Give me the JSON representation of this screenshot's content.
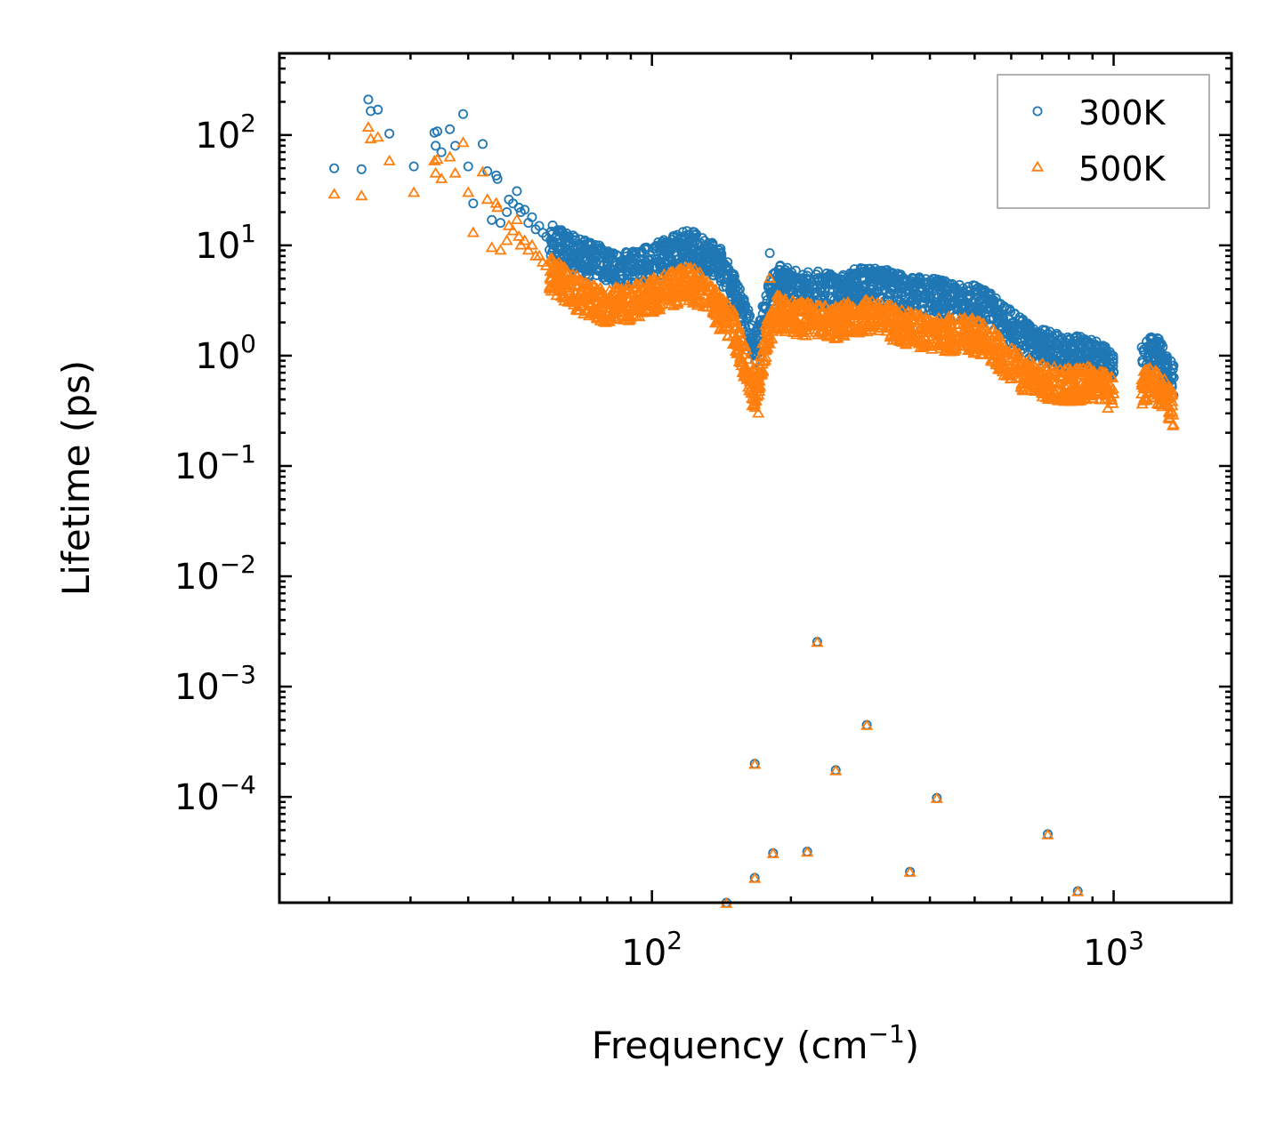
{
  "chart_data": {
    "type": "scatter",
    "title": "",
    "xlabel": "Frequency (cm",
    "xlabel_sup": "−1",
    "xlabel_end": ")",
    "ylabel": "Lifetime (ps)",
    "xscale": "log",
    "yscale": "log",
    "xlim": [
      15.6,
      1800
    ],
    "ylim": [
      1.1e-05,
      550
    ],
    "legend_position": "top-right",
    "x_ticks": [
      {
        "value": 100,
        "base": "10",
        "exp": "2"
      },
      {
        "value": 1000,
        "base": "10",
        "exp": "3"
      }
    ],
    "y_ticks": [
      {
        "value": 100,
        "base": "10",
        "exp": "2"
      },
      {
        "value": 10,
        "base": "10",
        "exp": "1"
      },
      {
        "value": 1,
        "base": "10",
        "exp": "0"
      },
      {
        "value": 0.1,
        "base": "10",
        "exp": "−1"
      },
      {
        "value": 0.01,
        "base": "10",
        "exp": "−2"
      },
      {
        "value": 0.001,
        "base": "10",
        "exp": "−3"
      },
      {
        "value": 0.0001,
        "base": "10",
        "exp": "−4"
      }
    ],
    "series": [
      {
        "name": "300K",
        "color": "#1f77b4",
        "marker": "circle",
        "trend": [
          [
            60,
            11
          ],
          [
            70,
            8
          ],
          [
            80,
            6.5
          ],
          [
            90,
            6
          ],
          [
            100,
            7
          ],
          [
            110,
            8.5
          ],
          [
            120,
            10
          ],
          [
            130,
            8
          ],
          [
            140,
            7
          ],
          [
            150,
            4
          ],
          [
            160,
            2
          ],
          [
            168,
            1.2
          ],
          [
            175,
            2.5
          ],
          [
            185,
            5
          ],
          [
            200,
            4.2
          ],
          [
            250,
            4
          ],
          [
            300,
            4.5
          ],
          [
            350,
            3.8
          ],
          [
            400,
            3.5
          ],
          [
            500,
            3
          ],
          [
            550,
            2.5
          ],
          [
            580,
            2
          ],
          [
            650,
            1.4
          ],
          [
            750,
            1.1
          ],
          [
            900,
            1
          ],
          [
            1000,
            0.75
          ]
        ],
        "trend2": [
          [
            1150,
            0.9
          ],
          [
            1200,
            1.1
          ],
          [
            1250,
            1.0
          ],
          [
            1300,
            0.75
          ],
          [
            1350,
            0.6
          ]
        ],
        "points": [
          [
            20.5,
            50
          ],
          [
            23.5,
            49
          ],
          [
            24.3,
            210
          ],
          [
            24.6,
            165
          ],
          [
            25.5,
            170
          ],
          [
            27,
            103
          ],
          [
            30.5,
            52
          ],
          [
            33.8,
            105
          ],
          [
            34,
            80
          ],
          [
            34.3,
            108
          ],
          [
            35,
            70
          ],
          [
            36.5,
            113
          ],
          [
            37.5,
            80
          ],
          [
            39,
            155
          ],
          [
            40,
            52
          ],
          [
            41,
            24
          ],
          [
            43,
            83
          ],
          [
            44,
            47
          ],
          [
            45,
            17
          ],
          [
            46,
            43
          ],
          [
            46.3,
            40
          ],
          [
            47,
            16
          ],
          [
            48.5,
            20
          ],
          [
            49,
            26
          ],
          [
            50,
            24
          ],
          [
            51,
            31
          ],
          [
            51.5,
            22
          ],
          [
            52,
            20
          ],
          [
            53,
            21
          ],
          [
            54,
            16
          ],
          [
            55,
            18
          ],
          [
            56,
            14
          ],
          [
            57,
            15
          ],
          [
            58,
            13
          ],
          [
            59,
            12
          ],
          [
            62,
            12
          ],
          [
            65,
            10
          ],
          [
            68,
            9
          ],
          [
            72,
            8.5
          ],
          [
            76,
            8
          ],
          [
            80,
            7
          ],
          [
            85,
            6.5
          ],
          [
            90,
            6.5
          ],
          [
            95,
            6
          ],
          [
            100,
            7.5
          ],
          [
            105,
            7.8
          ],
          [
            110,
            9
          ],
          [
            115,
            10.5
          ],
          [
            118,
            12
          ],
          [
            122,
            10.5
          ],
          [
            126,
            9
          ],
          [
            130,
            11
          ],
          [
            135,
            8
          ],
          [
            140,
            7.5
          ],
          [
            145,
            6.5
          ],
          [
            150,
            5.5
          ],
          [
            155,
            4
          ],
          [
            160,
            2.2
          ],
          [
            165,
            1.3
          ],
          [
            170,
            1.1
          ],
          [
            176,
            2.8
          ],
          [
            180,
            8.5
          ],
          [
            183,
            5.5
          ],
          [
            188,
            6
          ],
          [
            195,
            4.5
          ],
          [
            205,
            4.5
          ],
          [
            215,
            4
          ],
          [
            230,
            4.8
          ],
          [
            250,
            4.5
          ],
          [
            270,
            4.7
          ],
          [
            290,
            4.4
          ],
          [
            310,
            5.3
          ],
          [
            330,
            5.1
          ],
          [
            360,
            4
          ],
          [
            380,
            3.8
          ],
          [
            400,
            3.7
          ],
          [
            430,
            3.6
          ],
          [
            470,
            3.5
          ],
          [
            520,
            3.3
          ],
          [
            560,
            3
          ],
          [
            580,
            2.7
          ],
          [
            600,
            1.8
          ],
          [
            640,
            1.6
          ],
          [
            700,
            1.3
          ],
          [
            760,
            1.15
          ],
          [
            820,
            1.05
          ],
          [
            880,
            1.05
          ],
          [
            940,
            1.1
          ],
          [
            960,
            1.2
          ],
          [
            1000,
            0.7
          ],
          [
            1180,
            1.2
          ],
          [
            1200,
            1.45
          ],
          [
            1220,
            1.3
          ],
          [
            1260,
            1.0
          ],
          [
            1300,
            0.9
          ],
          [
            1340,
            0.65
          ]
        ]
      },
      {
        "name": "500K",
        "color": "#ff7f0e",
        "marker": "triangle",
        "trend": [
          [
            60,
            5.5
          ],
          [
            70,
            3.5
          ],
          [
            80,
            2.8
          ],
          [
            90,
            3
          ],
          [
            100,
            3.5
          ],
          [
            110,
            4
          ],
          [
            120,
            4.5
          ],
          [
            130,
            3.8
          ],
          [
            140,
            2.5
          ],
          [
            150,
            1.8
          ],
          [
            160,
            0.8
          ],
          [
            168,
            0.45
          ],
          [
            175,
            1.2
          ],
          [
            185,
            2.5
          ],
          [
            200,
            2.2
          ],
          [
            250,
            2
          ],
          [
            300,
            2.3
          ],
          [
            350,
            1.8
          ],
          [
            400,
            1.6
          ],
          [
            500,
            1.5
          ],
          [
            550,
            1.2
          ],
          [
            580,
            0.9
          ],
          [
            650,
            0.65
          ],
          [
            750,
            0.55
          ],
          [
            900,
            0.55
          ],
          [
            1000,
            0.45
          ]
        ],
        "trend2": [
          [
            1150,
            0.5
          ],
          [
            1200,
            0.55
          ],
          [
            1250,
            0.5
          ],
          [
            1300,
            0.4
          ],
          [
            1350,
            0.32
          ]
        ],
        "points": [
          [
            20.5,
            29
          ],
          [
            23.5,
            28
          ],
          [
            24.3,
            117
          ],
          [
            24.6,
            92
          ],
          [
            25.5,
            95
          ],
          [
            27,
            58
          ],
          [
            30.5,
            30
          ],
          [
            33.8,
            58
          ],
          [
            34,
            45
          ],
          [
            34.3,
            60
          ],
          [
            35,
            40
          ],
          [
            36.5,
            63
          ],
          [
            37.5,
            45
          ],
          [
            39,
            85
          ],
          [
            40,
            30
          ],
          [
            41,
            13
          ],
          [
            43,
            46
          ],
          [
            44,
            26
          ],
          [
            45,
            9.5
          ],
          [
            46,
            24
          ],
          [
            46.3,
            22
          ],
          [
            47,
            9
          ],
          [
            48.5,
            11
          ],
          [
            49,
            15
          ],
          [
            50,
            13.5
          ],
          [
            51,
            17
          ],
          [
            51.5,
            12
          ],
          [
            52,
            10
          ],
          [
            53,
            11
          ],
          [
            54,
            9
          ],
          [
            55,
            10
          ],
          [
            56,
            8
          ],
          [
            57,
            8
          ],
          [
            58,
            7
          ],
          [
            59,
            6.5
          ],
          [
            62,
            6
          ],
          [
            65,
            4.5
          ],
          [
            68,
            3.2
          ],
          [
            72,
            2.5
          ],
          [
            76,
            2.2
          ],
          [
            80,
            2.3
          ],
          [
            85,
            2.5
          ],
          [
            90,
            2.8
          ],
          [
            95,
            3
          ],
          [
            100,
            3.5
          ],
          [
            105,
            3.6
          ],
          [
            110,
            4
          ],
          [
            115,
            4.3
          ],
          [
            118,
            5
          ],
          [
            122,
            4.5
          ],
          [
            126,
            3.5
          ],
          [
            130,
            4.5
          ],
          [
            135,
            3
          ],
          [
            140,
            2.8
          ],
          [
            145,
            2.3
          ],
          [
            150,
            2
          ],
          [
            155,
            1.2
          ],
          [
            160,
            0.7
          ],
          [
            165,
            0.35
          ],
          [
            170,
            0.3
          ],
          [
            176,
            0.9
          ],
          [
            180,
            5
          ],
          [
            183,
            2.5
          ],
          [
            188,
            2.8
          ],
          [
            195,
            2
          ],
          [
            205,
            2
          ],
          [
            215,
            1.8
          ],
          [
            230,
            2.3
          ],
          [
            250,
            2.2
          ],
          [
            270,
            2.4
          ],
          [
            290,
            2
          ],
          [
            310,
            2.6
          ],
          [
            330,
            2.5
          ],
          [
            360,
            1.9
          ],
          [
            380,
            1.7
          ],
          [
            400,
            1.7
          ],
          [
            430,
            1.6
          ],
          [
            470,
            1.6
          ],
          [
            520,
            1.5
          ],
          [
            560,
            1.4
          ],
          [
            580,
            1.2
          ],
          [
            600,
            0.8
          ],
          [
            640,
            0.7
          ],
          [
            700,
            0.6
          ],
          [
            760,
            0.55
          ],
          [
            820,
            0.5
          ],
          [
            880,
            0.55
          ],
          [
            940,
            0.6
          ],
          [
            960,
            0.65
          ],
          [
            1000,
            0.45
          ],
          [
            1180,
            0.6
          ],
          [
            1200,
            0.75
          ],
          [
            1220,
            0.65
          ],
          [
            1260,
            0.5
          ],
          [
            1300,
            0.45
          ],
          [
            1340,
            0.35
          ]
        ]
      }
    ],
    "outliers": [
      [
        145,
        1.1e-05
      ],
      [
        167,
        0.0002
      ],
      [
        167,
        1.85e-05
      ],
      [
        183,
        3.1e-05
      ],
      [
        217,
        3.2e-05
      ],
      [
        228,
        0.00255
      ],
      [
        250,
        0.000175
      ],
      [
        292,
        0.00045
      ],
      [
        362,
        2.1e-05
      ],
      [
        414,
        9.8e-05
      ],
      [
        720,
        4.6e-05
      ],
      [
        836,
        1.4e-05
      ]
    ]
  }
}
